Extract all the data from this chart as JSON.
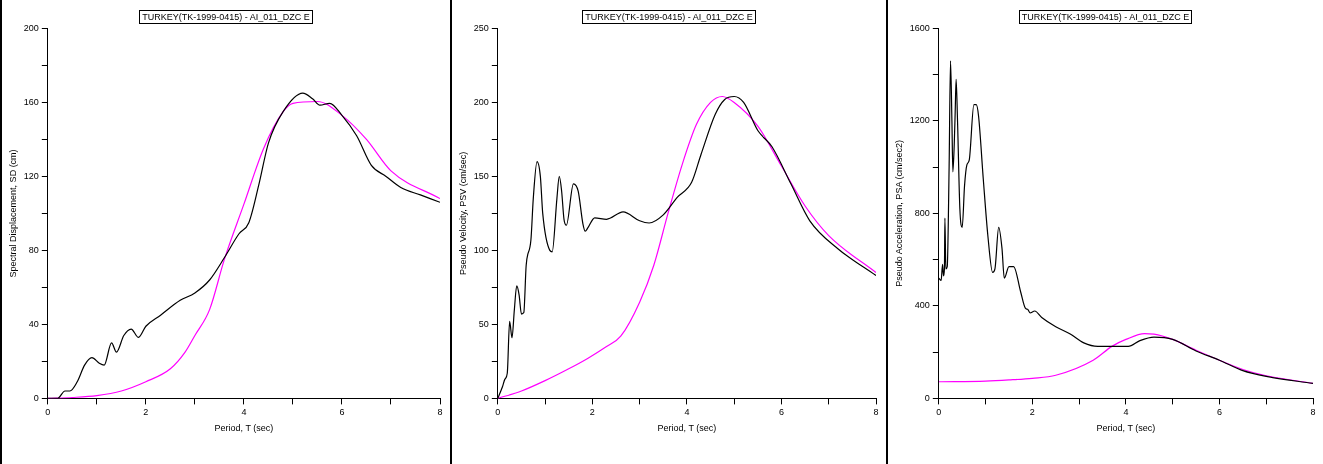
{
  "chart_data": [
    {
      "type": "line",
      "title": "TURKEY(TK-1999-0415) - AI_011_DZC E",
      "xlabel": "Period, T (sec)",
      "ylabel": "Spectral Displacement, SD (cm)",
      "xlim": [
        0,
        8
      ],
      "ylim": [
        0,
        200
      ],
      "xticks": [
        0,
        {
          "value": 1,
          "label": null
        },
        2,
        {
          "value": 3,
          "label": null
        },
        4,
        {
          "value": 5,
          "label": null
        },
        6,
        {
          "value": 7,
          "label": null
        },
        8
      ],
      "yticks": [
        0,
        {
          "value": 20,
          "label": null
        },
        40,
        {
          "value": 60,
          "label": null
        },
        80,
        {
          "value": 100,
          "label": null
        },
        120,
        {
          "value": 140,
          "label": null
        },
        160,
        {
          "value": 180,
          "label": null
        },
        200
      ],
      "grid": false,
      "legend": false,
      "marker": "none",
      "line_style": "solid",
      "series": [
        {
          "color": "#000000",
          "x": [
            0,
            0.2,
            0.35,
            0.45,
            0.6,
            0.75,
            0.9,
            1.05,
            1.15,
            1.3,
            1.4,
            1.55,
            1.7,
            1.85,
            2.0,
            2.3,
            2.7,
            3.0,
            3.3,
            3.6,
            3.9,
            4.1,
            4.3,
            4.5,
            4.8,
            5.2,
            5.4,
            5.55,
            5.75,
            6.0,
            6.3,
            6.6,
            6.9,
            7.2,
            7.6,
            8
          ],
          "values": [
            0,
            0,
            4,
            4,
            9,
            18,
            22,
            19,
            18,
            30,
            25,
            34,
            37.5,
            33,
            39,
            45,
            53,
            57,
            64,
            76,
            89,
            95,
            115,
            138,
            155,
            165,
            162,
            158.5,
            159.5,
            153,
            142,
            126,
            120,
            114,
            110,
            106
          ]
        },
        {
          "color": "#ff00ff",
          "x": [
            0,
            0.5,
            1,
            1.5,
            2,
            2.5,
            2.8,
            3.0,
            3.3,
            3.6,
            4.0,
            4.4,
            4.8,
            5.0,
            5.5,
            6.0,
            6.5,
            7.0,
            8
          ],
          "values": [
            0,
            0.5,
            1.5,
            4,
            9,
            16,
            25,
            34,
            48,
            75,
            105,
            135,
            155,
            159.5,
            160.5,
            153,
            140,
            123,
            108
          ]
        }
      ]
    },
    {
      "type": "line",
      "title": "TURKEY(TK-1999-0415) - AI_011_DZC E",
      "xlabel": "Period, T (sec)",
      "ylabel": "Pseudo Velocity, PSV (cm/sec)",
      "xlim": [
        0,
        8
      ],
      "ylim": [
        0,
        250
      ],
      "xticks": [
        0,
        {
          "value": 1,
          "label": null
        },
        2,
        {
          "value": 3,
          "label": null
        },
        4,
        {
          "value": 5,
          "label": null
        },
        6,
        {
          "value": 7,
          "label": null
        },
        8
      ],
      "yticks": [
        0,
        {
          "value": 25,
          "label": null
        },
        50,
        {
          "value": 75,
          "label": null
        },
        100,
        {
          "value": 125,
          "label": null
        },
        150,
        {
          "value": 175,
          "label": null
        },
        200,
        {
          "value": 225,
          "label": null
        },
        250
      ],
      "grid": false,
      "legend": false,
      "marker": "none",
      "line_style": "solid",
      "series": [
        {
          "color": "#000000",
          "x": [
            0,
            0.1,
            0.15,
            0.2,
            0.25,
            0.3,
            0.35,
            0.4,
            0.45,
            0.5,
            0.55,
            0.6,
            0.7,
            0.75,
            0.83,
            0.9,
            0.95,
            1.1,
            1.15,
            1.25,
            1.3,
            1.35,
            1.4,
            1.45,
            1.6,
            1.7,
            1.8,
            1.85,
            1.9,
            2.05,
            2.3,
            2.65,
            3.0,
            3.2,
            3.5,
            3.8,
            4.1,
            4.3,
            4.6,
            4.8,
            5.0,
            5.2,
            5.5,
            5.8,
            6.2,
            6.6,
            7.2,
            8
          ],
          "values": [
            0,
            8,
            13,
            17,
            52,
            41,
            60,
            76,
            70,
            57,
            58,
            90,
            107,
            135,
            160,
            150,
            125,
            100,
            99,
            135,
            150,
            140,
            121,
            117,
            145,
            140,
            118,
            113,
            115,
            122,
            121,
            126,
            120,
            118.5,
            124,
            136,
            146,
            165,
            192,
            202,
            204,
            200,
            181,
            170,
            145,
            120,
            101,
            83
          ]
        },
        {
          "color": "#ff00ff",
          "x": [
            0,
            0.5,
            1,
            1.5,
            1.9,
            2.3,
            2.6,
            3.0,
            3.3,
            3.6,
            3.9,
            4.2,
            4.5,
            4.75,
            5.0,
            5.5,
            6.0,
            6.5,
            7.0,
            8
          ],
          "values": [
            0,
            5,
            12,
            20,
            27,
            35,
            42,
            65,
            90,
            125,
            158,
            185,
            200,
            204,
            200,
            184,
            157,
            130,
            110,
            85
          ]
        }
      ]
    },
    {
      "type": "line",
      "title": "TURKEY(TK-1999-0415) - AI_011_DZC E",
      "xlabel": "Period, T (sec)",
      "ylabel": "Pseudo Acceleration, PSA (cm/sec2)",
      "xlim": [
        0,
        8
      ],
      "ylim": [
        0,
        1600
      ],
      "xticks": [
        0,
        {
          "value": 1,
          "label": null
        },
        2,
        {
          "value": 3,
          "label": null
        },
        4,
        {
          "value": 5,
          "label": null
        },
        6,
        {
          "value": 7,
          "label": null
        },
        8
      ],
      "yticks": [
        0,
        {
          "value": 200,
          "label": null
        },
        400,
        {
          "value": 600,
          "label": null
        },
        800,
        {
          "value": 1000,
          "label": null
        },
        1200,
        {
          "value": 1400,
          "label": null
        },
        1600
      ],
      "grid": false,
      "legend": false,
      "marker": "none",
      "line_style": "solid",
      "series": [
        {
          "color": "#000000",
          "x": [
            0,
            0.05,
            0.08,
            0.1,
            0.12,
            0.13,
            0.15,
            0.18,
            0.22,
            0.25,
            0.28,
            0.3,
            0.33,
            0.35,
            0.37,
            0.4,
            0.45,
            0.5,
            0.55,
            0.6,
            0.65,
            0.75,
            0.8,
            0.85,
            0.95,
            1.05,
            1.15,
            1.2,
            1.28,
            1.35,
            1.4,
            1.5,
            1.6,
            1.75,
            1.85,
            1.9,
            1.95,
            2.05,
            2.2,
            2.5,
            2.8,
            3.1,
            3.4,
            3.7,
            4.05,
            4.3,
            4.6,
            5.0,
            5.5,
            6.0,
            6.5,
            7.0,
            8
          ],
          "values": [
            520,
            510,
            580,
            530,
            560,
            780,
            560,
            570,
            1000,
            1460,
            1200,
            980,
            1100,
            1240,
            1380,
            1200,
            820,
            740,
            920,
            1010,
            1030,
            1270,
            1270,
            1220,
            950,
            700,
            545,
            560,
            740,
            650,
            520,
            570,
            570,
            460,
            390,
            385,
            370,
            378,
            350,
            310,
            280,
            240,
            225,
            225,
            225,
            250,
            265,
            255,
            205,
            165,
            120,
            95,
            65
          ]
        },
        {
          "color": "#ff00ff",
          "x": [
            0,
            1,
            1.5,
            2,
            2.5,
            3.3,
            3.7,
            4.0,
            4.4,
            4.6,
            5.0,
            5.5,
            6.0,
            6.5,
            7.0,
            8
          ],
          "values": [
            72,
            75,
            80,
            87,
            100,
            165,
            225,
            255,
            280,
            278,
            255,
            208,
            165,
            125,
            98,
            65
          ]
        }
      ]
    }
  ]
}
